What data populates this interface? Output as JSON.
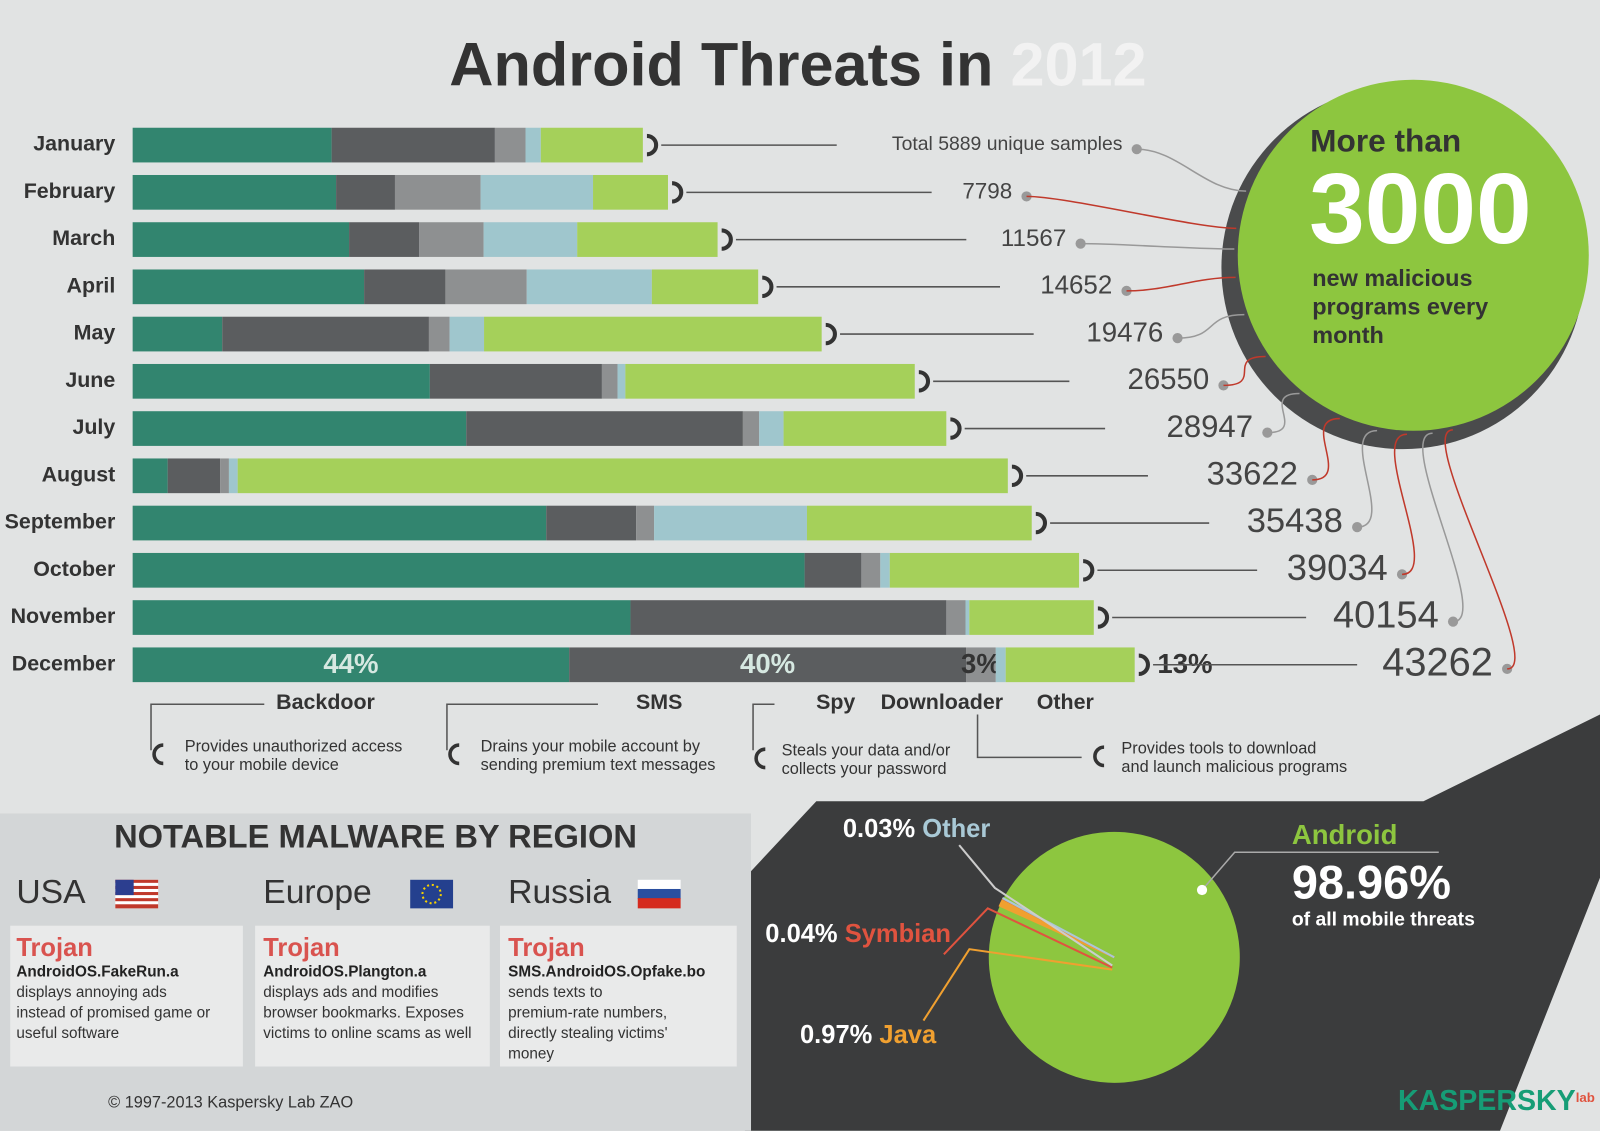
{
  "title": "Android Threats in",
  "title_year": "2012",
  "chart_data": [
    {
      "type": "bar",
      "categories": [
        "January",
        "February",
        "March",
        "April",
        "May",
        "June",
        "July",
        "August",
        "September",
        "October",
        "November",
        "December"
      ],
      "series": [
        {
          "name": "Backdoor",
          "color": "#32856f",
          "description": [
            "Provides unauthorized access",
            "to your mobile device"
          ],
          "values": [
            39,
            38,
            37,
            37,
            13,
            38,
            41,
            4,
            46,
            71,
            52,
            44
          ],
          "value_labels": [
            null,
            null,
            null,
            null,
            null,
            null,
            null,
            null,
            null,
            null,
            null,
            "44%"
          ]
        },
        {
          "name": "SMS",
          "color": "#5b5d5f",
          "description": [
            "Drains your mobile account by",
            "sending premium text messages"
          ],
          "values": [
            32,
            11,
            12,
            13,
            30,
            22,
            34,
            6,
            10,
            6,
            33,
            40
          ],
          "value_labels": [
            null,
            null,
            null,
            null,
            null,
            null,
            null,
            null,
            null,
            null,
            null,
            "40%"
          ]
        },
        {
          "name": "Spy",
          "color": "#8e9091",
          "description": [
            "Steals your data and/or",
            "collects your password"
          ],
          "values": [
            6,
            16,
            11,
            13,
            3,
            2,
            2,
            1,
            2,
            2,
            2,
            3
          ],
          "value_labels": [
            null,
            null,
            null,
            null,
            null,
            null,
            null,
            null,
            null,
            null,
            null,
            "3%"
          ]
        },
        {
          "name": "Downloader",
          "color": "#9fc6cd",
          "description": [
            "Provides tools to download",
            "and launch malicious programs"
          ],
          "values": [
            3,
            21,
            16,
            20,
            5,
            1,
            3,
            1,
            17,
            1,
            0.4,
            1
          ],
          "value_labels": [
            null,
            null,
            null,
            null,
            null,
            null,
            null,
            null,
            null,
            null,
            null,
            "1%"
          ]
        },
        {
          "name": "Other",
          "color": "#a5d05a",
          "values": [
            20,
            14,
            24,
            17,
            49,
            37,
            20,
            88,
            25,
            20,
            13,
            13
          ],
          "value_labels": [
            null,
            null,
            null,
            null,
            null,
            null,
            null,
            null,
            null,
            null,
            null,
            "13%"
          ]
        }
      ],
      "totals": [
        5889,
        7798,
        11567,
        14652,
        19476,
        26550,
        28947,
        33622,
        35438,
        39034,
        40154,
        43262
      ],
      "total_labels": [
        "Total 5889 unique samples",
        "7798",
        "11567",
        "14652",
        "19476",
        "26550",
        "28947",
        "33622",
        "35438",
        "39034",
        "40154",
        "43262"
      ]
    },
    {
      "type": "pie",
      "categories": [
        "Android",
        "Java",
        "Symbian",
        "Other"
      ],
      "values": [
        98.96,
        0.97,
        0.04,
        0.03
      ],
      "value_labels": [
        "98.96%",
        "0.97%",
        "0.04%",
        "0.03%"
      ],
      "colors": [
        "#8dc63f",
        "#f0a030",
        "#e0533f",
        "#a9c9d6"
      ],
      "android_note": "of all mobile threats"
    }
  ],
  "callout": {
    "prefix": "More than",
    "number": 3000,
    "suffix_lines": [
      "new malicious",
      "programs every",
      "month"
    ]
  },
  "region_section": {
    "title": "NOTABLE MALWARE BY REGION",
    "regions": [
      {
        "name": "USA",
        "category": "Trojan",
        "malware": "AndroidOS.FakeRun.a",
        "description": [
          "displays annoying ads",
          "instead of promised game or",
          "useful software"
        ]
      },
      {
        "name": "Europe",
        "category": "Trojan",
        "malware": "AndroidOS.Plangton.a",
        "description": [
          "displays ads and modifies",
          "browser bookmarks. Exposes",
          "victims to online scams as well"
        ]
      },
      {
        "name": "Russia",
        "category": "Trojan",
        "malware": "SMS.AndroidOS.Opfake.bo",
        "description": [
          "sends texts to",
          "premium-rate numbers,",
          "directly stealing victims'",
          "money"
        ]
      }
    ]
  },
  "footer": "© 1997-2013 Kaspersky Lab ZAO",
  "logo": "KASPERSKY",
  "logo_suffix": "lab"
}
